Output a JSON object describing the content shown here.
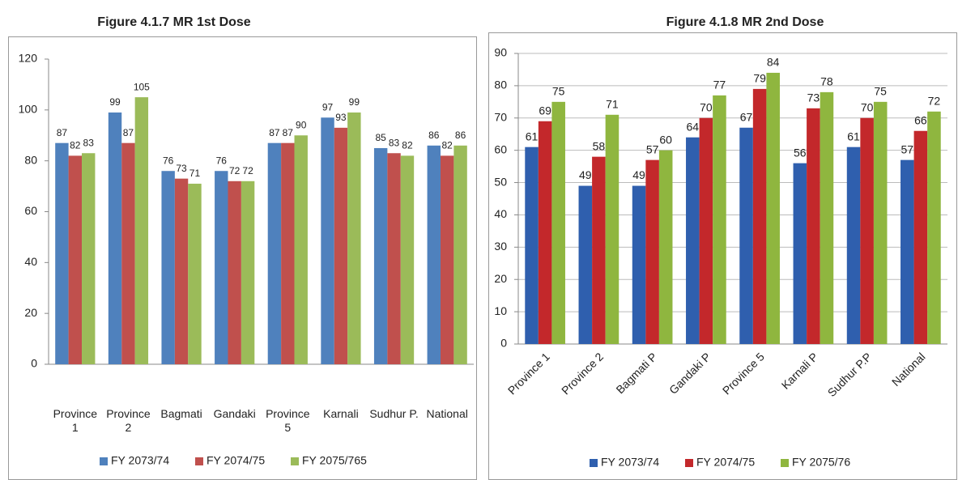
{
  "chart_data": [
    {
      "type": "bar",
      "title": "Figure 4.1.7 MR 1st Dose",
      "categories": [
        "Province 1",
        "Province 2",
        "Bagmati",
        "Gandaki",
        "Province 5",
        "Karnali",
        "Sudhur P.",
        "National"
      ],
      "series": [
        {
          "name": "FY 2073/74",
          "color": "#4f81bd",
          "values": [
            87,
            99,
            76,
            76,
            87,
            97,
            85,
            86
          ]
        },
        {
          "name": "FY 2074/75",
          "color": "#c0504d",
          "values": [
            82,
            87,
            73,
            72,
            87,
            93,
            83,
            82
          ]
        },
        {
          "name": "FY 2075/765",
          "color": "#9bbb59",
          "values": [
            83,
            105,
            71,
            72,
            90,
            99,
            82,
            86
          ]
        }
      ],
      "ylim": [
        0,
        120
      ],
      "yticks": [
        0,
        20,
        40,
        60,
        80,
        100,
        120
      ],
      "grid": false,
      "legend": "bottom"
    },
    {
      "type": "bar",
      "title": "Figure 4.1.8 MR 2nd Dose",
      "categories": [
        "Province 1",
        "Province 2",
        "Bagmati P",
        "Gandaki P",
        "Province 5",
        "Karnali P",
        "Sudhur P.P",
        "National"
      ],
      "series": [
        {
          "name": "FY 2073/74",
          "color": "#2f5fae",
          "values": [
            61,
            49,
            49,
            64,
            67,
            56,
            61,
            57
          ]
        },
        {
          "name": "FY 2074/75",
          "color": "#c3282b",
          "values": [
            69,
            58,
            57,
            70,
            79,
            73,
            70,
            66
          ]
        },
        {
          "name": "FY 2075/76",
          "color": "#8fb63f",
          "values": [
            75,
            71,
            60,
            77,
            84,
            78,
            75,
            72
          ]
        }
      ],
      "ylim": [
        0,
        90
      ],
      "yticks": [
        0,
        10,
        20,
        30,
        40,
        50,
        60,
        70,
        80,
        90
      ],
      "grid": true,
      "legend": "bottom"
    }
  ]
}
